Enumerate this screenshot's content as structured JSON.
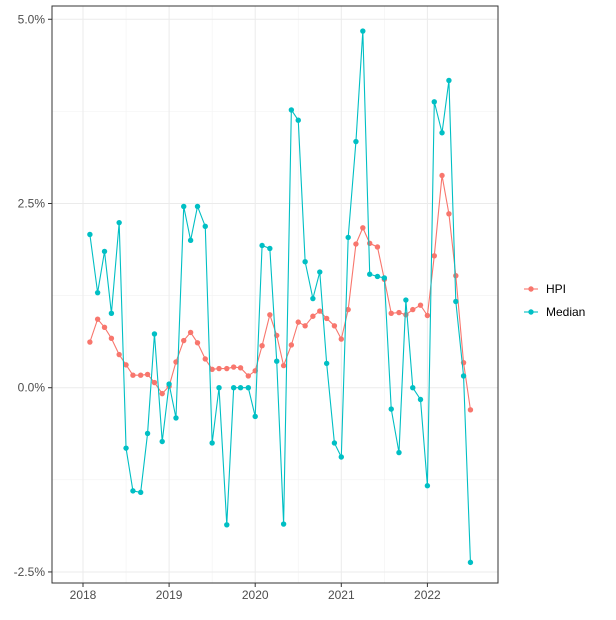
{
  "chart_data": {
    "type": "line",
    "title": "",
    "xlabel": "",
    "ylabel": "",
    "x_ticks": [
      {
        "value": 2018.0,
        "label": "2018"
      },
      {
        "value": 2019.0,
        "label": "2019"
      },
      {
        "value": 2020.0,
        "label": "2020"
      },
      {
        "value": 2021.0,
        "label": "2021"
      },
      {
        "value": 2022.0,
        "label": "2022"
      }
    ],
    "y_ticks": [
      {
        "value": -2.5,
        "label": "-2.5%"
      },
      {
        "value": 0.0,
        "label": "0.0%"
      },
      {
        "value": 2.5,
        "label": "2.5%"
      },
      {
        "value": 5.0,
        "label": "5.0%"
      }
    ],
    "xlim": [
      2017.64,
      2022.82
    ],
    "ylim": [
      -2.65,
      5.18
    ],
    "grid": true,
    "legend_position": "right",
    "x": [
      2018.08,
      2018.17,
      2018.25,
      2018.33,
      2018.42,
      2018.5,
      2018.58,
      2018.67,
      2018.75,
      2018.83,
      2018.92,
      2019.0,
      2019.08,
      2019.17,
      2019.25,
      2019.33,
      2019.42,
      2019.5,
      2019.58,
      2019.67,
      2019.75,
      2019.83,
      2019.92,
      2020.0,
      2020.08,
      2020.17,
      2020.25,
      2020.33,
      2020.42,
      2020.5,
      2020.58,
      2020.67,
      2020.75,
      2020.83,
      2020.92,
      2021.0,
      2021.08,
      2021.17,
      2021.25,
      2021.33,
      2021.42,
      2021.5,
      2021.58,
      2021.67,
      2021.75,
      2021.83,
      2021.92,
      2022.0,
      2022.08,
      2022.17,
      2022.25,
      2022.33,
      2022.42,
      2022.5
    ],
    "series": [
      {
        "name": "HPI",
        "color": "#F8766D",
        "values": [
          0.62,
          0.93,
          0.82,
          0.67,
          0.45,
          0.31,
          0.17,
          0.17,
          0.18,
          0.07,
          -0.08,
          0.02,
          0.35,
          0.64,
          0.75,
          0.61,
          0.39,
          0.25,
          0.26,
          0.26,
          0.28,
          0.27,
          0.16,
          0.23,
          0.57,
          0.99,
          0.71,
          0.3,
          0.58,
          0.89,
          0.84,
          0.97,
          1.04,
          0.94,
          0.84,
          0.66,
          1.06,
          1.95,
          2.17,
          1.96,
          1.91,
          1.47,
          1.01,
          1.02,
          0.99,
          1.06,
          1.12,
          0.98,
          1.79,
          2.88,
          2.36,
          1.52,
          0.34,
          -0.3
        ]
      },
      {
        "name": "Median",
        "color": "#00BFC4",
        "values": [
          2.08,
          1.29,
          1.85,
          1.01,
          2.24,
          -0.82,
          -1.4,
          -1.42,
          -0.62,
          0.73,
          -0.73,
          0.05,
          -0.41,
          2.46,
          2.0,
          2.46,
          2.19,
          -0.75,
          0.0,
          -1.86,
          0.0,
          0.0,
          0.0,
          -0.39,
          1.93,
          1.89,
          0.36,
          -1.85,
          3.77,
          3.63,
          1.71,
          1.21,
          1.57,
          0.33,
          -0.75,
          -0.94,
          2.04,
          3.34,
          4.84,
          1.54,
          1.51,
          1.49,
          -0.29,
          -0.88,
          1.19,
          0.0,
          -0.16,
          -1.33,
          3.88,
          3.46,
          4.17,
          1.17,
          0.16,
          -2.37
        ]
      }
    ]
  }
}
